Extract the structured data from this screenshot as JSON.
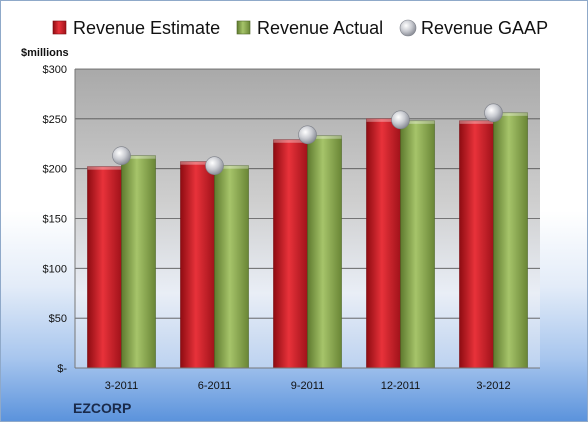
{
  "chart_data": {
    "type": "bar",
    "title": "",
    "unit_label": "$millions",
    "company": "EZCORP",
    "categories": [
      "3-2011",
      "6-2011",
      "9-2011",
      "12-2011",
      "3-2012"
    ],
    "series": [
      {
        "name": "Revenue Estimate",
        "type": "bar",
        "color": "#c8141e",
        "values": [
          202,
          207,
          229,
          250,
          248
        ]
      },
      {
        "name": "Revenue Actual",
        "type": "bar",
        "color": "#8aaa4e",
        "values": [
          213,
          203,
          233,
          248,
          256
        ]
      },
      {
        "name": "Revenue GAAP",
        "type": "marker",
        "color": "#c7c9cf",
        "values": [
          213,
          203,
          234,
          249,
          256
        ]
      }
    ],
    "ylim": [
      0,
      300
    ],
    "yticks": [
      {
        "value": 0,
        "label": "$-"
      },
      {
        "value": 50,
        "label": "$50"
      },
      {
        "value": 100,
        "label": "$100"
      },
      {
        "value": 150,
        "label": "$150"
      },
      {
        "value": 200,
        "label": "$200"
      },
      {
        "value": 250,
        "label": "$250"
      },
      {
        "value": 300,
        "label": "$300"
      }
    ],
    "grid": true,
    "legend": "top"
  }
}
